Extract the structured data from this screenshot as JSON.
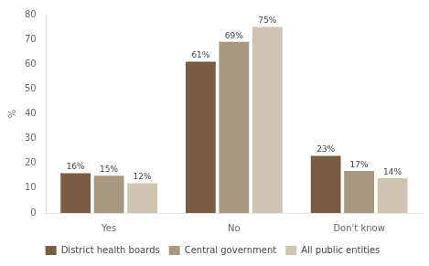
{
  "chart_data": {
    "type": "bar",
    "ylabel": "%",
    "categories": [
      "Yes",
      "No",
      "Don't know"
    ],
    "series": [
      {
        "name": "District health boards",
        "color": "#7a5c45",
        "values": [
          16,
          61,
          23
        ],
        "value_labels": [
          "16%",
          "61%",
          "23%"
        ]
      },
      {
        "name": "Central government",
        "color": "#a89880",
        "values": [
          15,
          69,
          17
        ],
        "value_labels": [
          "15%",
          "69%",
          "17%"
        ]
      },
      {
        "name": "All public entities",
        "color": "#cfc4b2",
        "values": [
          12,
          75,
          14
        ],
        "value_labels": [
          "12%",
          "75%",
          "14%"
        ]
      }
    ],
    "ylim": [
      0,
      80
    ],
    "yticks": [
      0,
      10,
      20,
      30,
      40,
      50,
      60,
      70,
      80
    ],
    "grid": false,
    "legend": "bottom",
    "data_labels": true
  }
}
